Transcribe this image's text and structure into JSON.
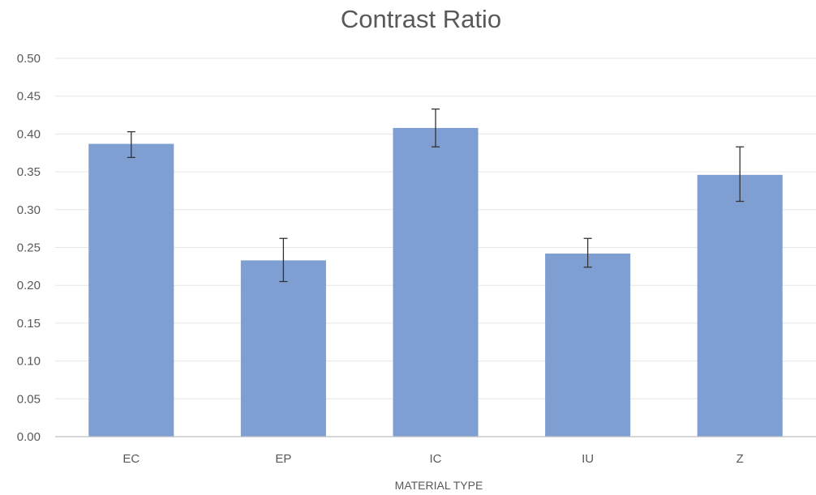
{
  "chart_data": {
    "type": "bar",
    "title": "Contrast Ratio",
    "xlabel": "MATERIAL TYPE",
    "ylabel": "",
    "categories": [
      "EC",
      "EP",
      "IC",
      "IU",
      "Z"
    ],
    "values": [
      0.387,
      0.233,
      0.408,
      0.242,
      0.346
    ],
    "error_low": [
      0.369,
      0.205,
      0.383,
      0.224,
      0.311
    ],
    "error_high": [
      0.403,
      0.262,
      0.433,
      0.262,
      0.383
    ],
    "ylim": [
      0,
      0.5
    ],
    "yticks": [
      "0.00",
      "0.05",
      "0.10",
      "0.15",
      "0.20",
      "0.25",
      "0.30",
      "0.35",
      "0.40",
      "0.45",
      "0.50"
    ],
    "grid": true,
    "bar_color": "#7f9fd3"
  }
}
